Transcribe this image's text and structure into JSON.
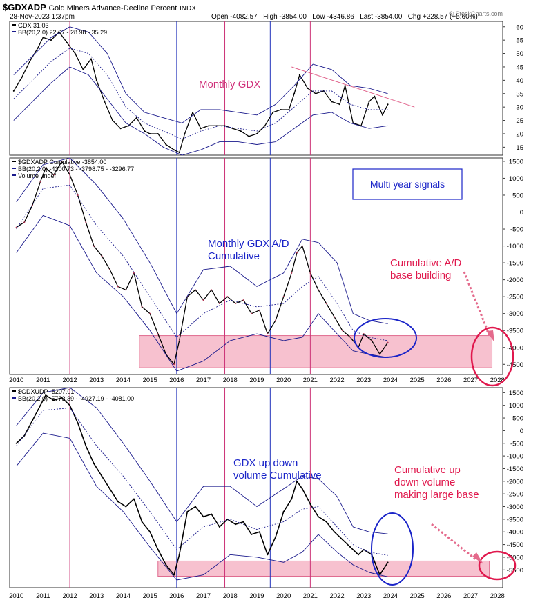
{
  "header": {
    "symbol": "$GDXADP",
    "description": "Gold Miners Advance-Decline Percent",
    "exchange": "INDX",
    "date": "28-Nov-2023 1:37pm",
    "open": "Open -4082.57",
    "high": "High -3854.00",
    "low": "Low -4346.86",
    "last": "Last -3854.00",
    "chg": "Chg +228.57 (+5.60%)",
    "watermark": "© StockCharts.com"
  },
  "x_axis_labels": [
    "2010",
    "2011",
    "2012",
    "2013",
    "2014",
    "2015",
    "2016",
    "2017",
    "2018",
    "2019",
    "2020",
    "2021",
    "2022",
    "2023",
    "2024",
    "2025",
    "2026",
    "2027",
    "2028"
  ],
  "signal_lines": {
    "pink": [
      2012.0,
      2017.8,
      2021.0
    ],
    "blue": [
      2016.0,
      2019.5
    ]
  },
  "colors": {
    "price_line": "#000000",
    "bollinger": "#1a1a8c",
    "signal_pink": "#cc3377",
    "signal_blue": "#2233bb",
    "base_zone": "#f4a7bb",
    "annotation_red": "#e0184d",
    "annotation_blue": "#1a24c8"
  },
  "chart_data": [
    {
      "type": "line",
      "panel": "top",
      "legend": [
        "GDX 31.03",
        "BB(20,2.0) 22.67 - 28.98 - 35.29"
      ],
      "annotation": "Monthly GDX",
      "ylim": [
        12,
        62
      ],
      "yticks": [
        15,
        20,
        25,
        30,
        35,
        40,
        45,
        50,
        55,
        60
      ],
      "series": [
        {
          "name": "GDX",
          "x": [
            2009.9,
            2010.2,
            2010.5,
            2010.8,
            2011.0,
            2011.3,
            2011.6,
            2011.9,
            2012.2,
            2012.5,
            2012.8,
            2013.0,
            2013.3,
            2013.6,
            2013.9,
            2014.2,
            2014.5,
            2014.8,
            2015.0,
            2015.3,
            2015.6,
            2015.9,
            2016.1,
            2016.3,
            2016.6,
            2016.9,
            2017.2,
            2017.5,
            2017.8,
            2018.1,
            2018.4,
            2018.7,
            2019.0,
            2019.3,
            2019.6,
            2019.9,
            2020.2,
            2020.4,
            2020.6,
            2020.9,
            2021.2,
            2021.5,
            2021.8,
            2022.1,
            2022.3,
            2022.6,
            2022.9,
            2023.2,
            2023.4,
            2023.7,
            2023.9
          ],
          "values": [
            36,
            41,
            47,
            52,
            56,
            55,
            58,
            54,
            50,
            44,
            48,
            40,
            32,
            25,
            22,
            23,
            26,
            21,
            20,
            20,
            16,
            14,
            13,
            20,
            28,
            22,
            23,
            23,
            23,
            22,
            21,
            19,
            20,
            23,
            28,
            29,
            29,
            35,
            42,
            37,
            35,
            36,
            32,
            31,
            38,
            24,
            23,
            32,
            34,
            27,
            31
          ]
        },
        {
          "name": "BB upper",
          "x": [
            2009.9,
            2010.6,
            2011.3,
            2012.0,
            2012.7,
            2013.4,
            2014.1,
            2014.8,
            2015.5,
            2016.2,
            2016.9,
            2017.6,
            2018.3,
            2019.0,
            2019.7,
            2020.4,
            2021.1,
            2021.8,
            2022.5,
            2023.2,
            2023.9
          ],
          "values": [
            42,
            49,
            56,
            60,
            58,
            50,
            35,
            28,
            26,
            24,
            29,
            29,
            28,
            27,
            31,
            38,
            46,
            44,
            38,
            37,
            35
          ]
        },
        {
          "name": "BB middle",
          "x": [
            2009.9,
            2010.6,
            2011.3,
            2012.0,
            2012.7,
            2013.4,
            2014.1,
            2014.8,
            2015.5,
            2016.2,
            2016.9,
            2017.6,
            2018.3,
            2019.0,
            2019.7,
            2020.4,
            2021.1,
            2021.8,
            2022.5,
            2023.2,
            2023.9
          ],
          "values": [
            33,
            40,
            47,
            52,
            50,
            42,
            30,
            24,
            21,
            18,
            21,
            23,
            22,
            21,
            24,
            30,
            36,
            36,
            31,
            29,
            29
          ]
        },
        {
          "name": "BB lower",
          "x": [
            2009.9,
            2010.6,
            2011.3,
            2012.0,
            2012.7,
            2013.4,
            2014.1,
            2014.8,
            2015.5,
            2016.2,
            2016.9,
            2017.6,
            2018.3,
            2019.0,
            2019.7,
            2020.4,
            2021.1,
            2021.8,
            2022.5,
            2023.2,
            2023.9
          ],
          "values": [
            25,
            32,
            39,
            45,
            42,
            33,
            24,
            20,
            15,
            12,
            14,
            17,
            17,
            16,
            17,
            22,
            27,
            28,
            24,
            22,
            23
          ]
        },
        {
          "name": "Trendline",
          "x": [
            2020.3,
            2024.9
          ],
          "values": [
            45,
            30
          ]
        }
      ]
    },
    {
      "type": "line",
      "panel": "middle",
      "legend": [
        "$GDXADP Cumulative -3854.00",
        "BB(20,2.0) -4300.73 - -3798.75 - -3296.77",
        "Volume undef"
      ],
      "annotations": [
        "Multi year signals",
        "Monthly GDX A/D",
        "Cumulative",
        "Cumulative A/D",
        "base building"
      ],
      "ylim": [
        -4800,
        1600
      ],
      "yticks": [
        1500,
        1000,
        500,
        0,
        -500,
        -1000,
        -1500,
        -2000,
        -2500,
        -3000,
        -3500,
        -4000,
        -4500
      ],
      "base_zone": [
        -3650,
        -4600
      ],
      "series": [
        {
          "name": "$GDXADP Cumulative",
          "x": [
            2010.0,
            2010.3,
            2010.6,
            2010.9,
            2011.1,
            2011.4,
            2011.7,
            2012.0,
            2012.3,
            2012.6,
            2012.9,
            2013.2,
            2013.5,
            2013.8,
            2014.1,
            2014.4,
            2014.7,
            2015.0,
            2015.3,
            2015.6,
            2015.9,
            2016.1,
            2016.4,
            2016.7,
            2017.0,
            2017.3,
            2017.6,
            2017.9,
            2018.2,
            2018.5,
            2018.8,
            2019.1,
            2019.4,
            2019.7,
            2020.0,
            2020.3,
            2020.5,
            2020.7,
            2021.0,
            2021.3,
            2021.6,
            2021.9,
            2022.2,
            2022.5,
            2022.8,
            2023.0,
            2023.3,
            2023.6,
            2023.9
          ],
          "values": [
            -450,
            -300,
            200,
            900,
            1300,
            1100,
            1500,
            1100,
            500,
            -300,
            -1000,
            -1300,
            -1700,
            -2200,
            -2300,
            -1800,
            -2800,
            -3000,
            -3600,
            -4200,
            -4500,
            -3800,
            -2500,
            -2300,
            -2600,
            -2300,
            -2700,
            -2500,
            -2700,
            -2600,
            -3000,
            -2900,
            -3600,
            -3200,
            -2500,
            -1800,
            -1200,
            -1000,
            -1800,
            -2300,
            -2700,
            -3100,
            -3500,
            -3700,
            -4000,
            -3600,
            -3800,
            -4200,
            -3854
          ]
        },
        {
          "name": "BB upper",
          "x": [
            2010.0,
            2011.0,
            2012.0,
            2013.0,
            2014.0,
            2015.0,
            2016.0,
            2017.0,
            2018.0,
            2019.0,
            2020.0,
            2020.7,
            2021.3,
            2022.0,
            2022.6,
            2023.2,
            2023.9
          ],
          "values": [
            300,
            1400,
            1600,
            800,
            -200,
            -1500,
            -3000,
            -1700,
            -1600,
            -2200,
            -1800,
            -800,
            -900,
            -1500,
            -3000,
            -3200,
            -3300
          ]
        },
        {
          "name": "BB middle",
          "x": [
            2010.0,
            2011.0,
            2012.0,
            2013.0,
            2014.0,
            2015.0,
            2016.0,
            2017.0,
            2018.0,
            2019.0,
            2020.0,
            2020.7,
            2021.3,
            2022.0,
            2022.6,
            2023.2,
            2023.9
          ],
          "values": [
            -500,
            700,
            800,
            -400,
            -1300,
            -2500,
            -3700,
            -3000,
            -2600,
            -2800,
            -2700,
            -2200,
            -1900,
            -2700,
            -3500,
            -3700,
            -3800
          ]
        },
        {
          "name": "BB lower",
          "x": [
            2010.0,
            2011.0,
            2012.0,
            2013.0,
            2014.0,
            2015.0,
            2016.0,
            2017.0,
            2018.0,
            2019.0,
            2020.0,
            2020.7,
            2021.3,
            2022.0,
            2022.6,
            2023.2,
            2023.9
          ],
          "values": [
            -1200,
            -100,
            -400,
            -1800,
            -2500,
            -3500,
            -4700,
            -4400,
            -3800,
            -3600,
            -3800,
            -3700,
            -3000,
            -3600,
            -4100,
            -4200,
            -4300
          ]
        }
      ]
    },
    {
      "type": "line",
      "panel": "bottom",
      "legend": [
        "$GDXUDP -5207.01",
        "BB(20,2.0) -5773.39 - -4927.19 - -4081.00"
      ],
      "annotations": [
        "GDX up down",
        "volume Cumulative",
        "Cumulative up",
        "down volume",
        "making large base"
      ],
      "ylim": [
        -6200,
        1700
      ],
      "yticks": [
        1500,
        1000,
        500,
        0,
        -500,
        -1000,
        -1500,
        -2000,
        -2500,
        -3000,
        -3500,
        -4000,
        -4500,
        -5000,
        -5500
      ],
      "base_zone": [
        -5150,
        -5750
      ],
      "series": [
        {
          "name": "$GDXUDP",
          "x": [
            2010.0,
            2010.3,
            2010.6,
            2010.9,
            2011.1,
            2011.4,
            2011.7,
            2012.0,
            2012.3,
            2012.6,
            2012.9,
            2013.2,
            2013.5,
            2013.8,
            2014.1,
            2014.4,
            2014.7,
            2015.0,
            2015.3,
            2015.6,
            2015.9,
            2016.1,
            2016.4,
            2016.7,
            2017.0,
            2017.3,
            2017.6,
            2017.9,
            2018.2,
            2018.5,
            2018.8,
            2019.1,
            2019.4,
            2019.7,
            2020.0,
            2020.3,
            2020.5,
            2020.7,
            2021.0,
            2021.3,
            2021.6,
            2021.9,
            2022.2,
            2022.5,
            2022.8,
            2023.0,
            2023.3,
            2023.6,
            2023.9
          ],
          "values": [
            -500,
            -200,
            400,
            1000,
            1400,
            1200,
            1300,
            1000,
            300,
            -600,
            -1300,
            -1800,
            -2300,
            -2800,
            -3000,
            -2700,
            -3600,
            -4000,
            -4700,
            -5300,
            -5700,
            -4900,
            -3200,
            -3000,
            -3400,
            -3300,
            -3800,
            -3500,
            -3700,
            -3600,
            -4100,
            -4000,
            -4900,
            -4200,
            -3200,
            -2700,
            -2000,
            -2300,
            -2900,
            -3400,
            -3600,
            -4000,
            -4300,
            -4600,
            -4900,
            -4700,
            -4900,
            -5700,
            -5207
          ]
        },
        {
          "name": "BB upper",
          "x": [
            2010.0,
            2011.0,
            2012.0,
            2013.0,
            2014.0,
            2015.0,
            2016.0,
            2017.0,
            2018.0,
            2019.0,
            2020.0,
            2020.7,
            2021.3,
            2022.0,
            2022.6,
            2023.2,
            2023.9
          ],
          "values": [
            200,
            1500,
            1700,
            900,
            -500,
            -2000,
            -3600,
            -2200,
            -2200,
            -3000,
            -2300,
            -1800,
            -1900,
            -2600,
            -3800,
            -4000,
            -4081
          ]
        },
        {
          "name": "BB middle",
          "x": [
            2010.0,
            2011.0,
            2012.0,
            2013.0,
            2014.0,
            2015.0,
            2016.0,
            2017.0,
            2018.0,
            2019.0,
            2020.0,
            2020.7,
            2021.3,
            2022.0,
            2022.6,
            2023.2,
            2023.9
          ],
          "values": [
            -600,
            800,
            900,
            -600,
            -1800,
            -3200,
            -4700,
            -3800,
            -3500,
            -3900,
            -3600,
            -3100,
            -3000,
            -3800,
            -4500,
            -4800,
            -4927
          ]
        },
        {
          "name": "BB lower",
          "x": [
            2010.0,
            2011.0,
            2012.0,
            2013.0,
            2014.0,
            2015.0,
            2016.0,
            2017.0,
            2018.0,
            2019.0,
            2020.0,
            2020.7,
            2021.3,
            2022.0,
            2022.6,
            2023.2,
            2023.9
          ],
          "values": [
            -1400,
            -100,
            -300,
            -2200,
            -3200,
            -4600,
            -5900,
            -5700,
            -4900,
            -5000,
            -5200,
            -4800,
            -4100,
            -4800,
            -5300,
            -5600,
            -5773
          ]
        }
      ]
    }
  ]
}
